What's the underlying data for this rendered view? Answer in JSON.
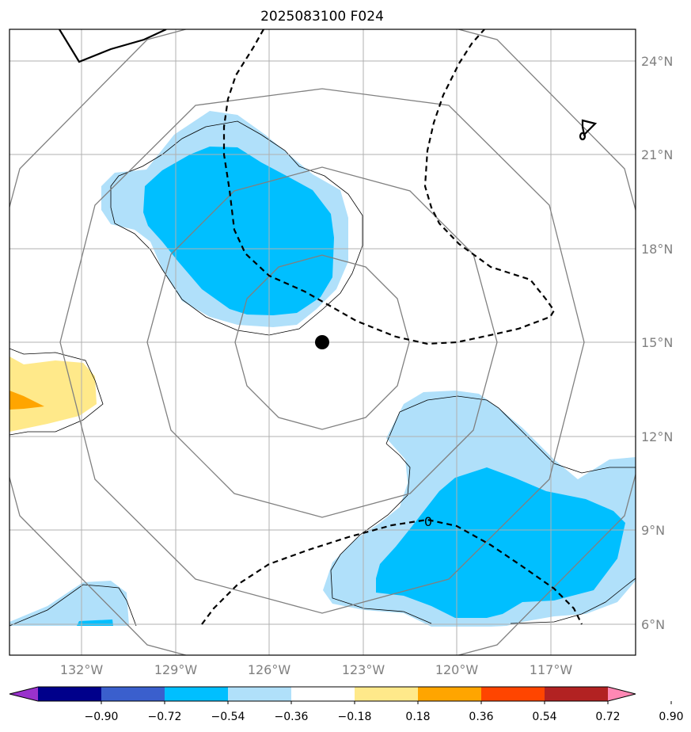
{
  "chart_data": {
    "type": "contour-map",
    "title": "2025083100 F024",
    "x_ticks": [
      "132°W",
      "129°W",
      "126°W",
      "123°W",
      "120°W",
      "117°W"
    ],
    "y_ticks": [
      "24°N",
      "21°N",
      "18°N",
      "15°N",
      "12°N",
      "9°N",
      "6°N"
    ],
    "x_tick_values": [
      -132,
      -129,
      -126,
      -123,
      -120,
      -117
    ],
    "y_tick_values": [
      24,
      21,
      18,
      15,
      12,
      9,
      6
    ],
    "xlim": [
      -134.4,
      -114.4
    ],
    "ylim": [
      5,
      25
    ],
    "storm_center": {
      "lon": -124.3,
      "lat": 15.0
    },
    "contour_label": "0",
    "colorbar": {
      "levels": [
        -0.9,
        -0.72,
        -0.54,
        -0.36,
        -0.18,
        0.18,
        0.36,
        0.54,
        0.72,
        0.9
      ],
      "tick_labels": [
        "−0.90",
        "−0.72",
        "−0.54",
        "−0.36",
        "−0.18",
        "0.18",
        "0.36",
        "0.54",
        "0.72",
        "0.90"
      ],
      "colors": [
        "#9932cc",
        "#00008b",
        "#3a5fcd",
        "#00bfff",
        "#b0e0fa",
        "#ffffff",
        "#ffe98a",
        "#ffa500",
        "#ff4500",
        "#b22222",
        "#ff88b4"
      ]
    },
    "fill_colors": {
      "light_blue": "#b0e0fa",
      "blue": "#00bfff",
      "light_yellow": "#ffe98a",
      "orange": "#ffa500"
    },
    "line_colors": {
      "grid": "#b0b0b0",
      "rings": "#808080",
      "coast": "#000000"
    }
  }
}
